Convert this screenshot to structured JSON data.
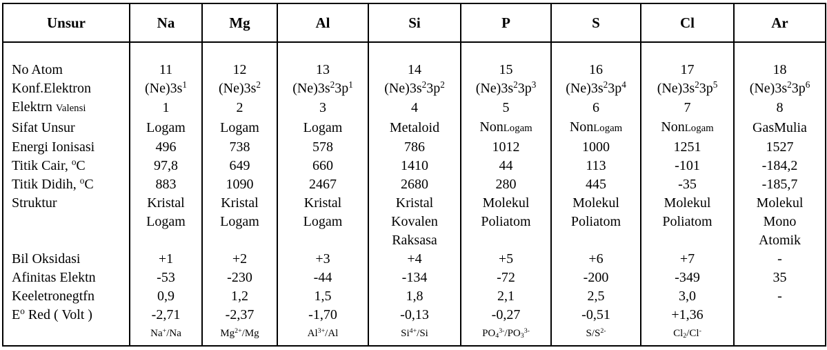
{
  "table": {
    "header": {
      "label_col": "Unsur",
      "elements": [
        "Na",
        "Mg",
        "Al",
        "Si",
        "P",
        "S",
        "Cl",
        "Ar"
      ]
    },
    "rows": [
      {
        "kind": "spacer",
        "label": "",
        "values": [
          "",
          "",
          "",
          "",
          "",
          "",
          "",
          ""
        ]
      },
      {
        "label": "No Atom",
        "values": [
          "11",
          "12",
          "13",
          "14",
          "15",
          "16",
          "17",
          "18"
        ]
      },
      {
        "label": "Konf.Elektron",
        "values": [
          "(Ne)3s^1^",
          "(Ne)3s^2^",
          "(Ne)3s^2^3p^1^",
          "(Ne)3s^2^3p^2^",
          "(Ne)3s^2^3p^3^",
          "(Ne)3s^2^3p^4^",
          "(Ne)3s^2^3p^5^",
          "(Ne)3s^2^3p^6^"
        ]
      },
      {
        "label": "Elektrn %Valensi%",
        "values": [
          "1",
          "2",
          "3",
          "4",
          "5",
          "6",
          "7",
          "8"
        ]
      },
      {
        "label": "Sifat Unsur",
        "values": [
          "Logam",
          "Logam",
          "Logam",
          "Metaloid",
          "Non%Logam%",
          "Non%Logam%",
          "Non%Logam%",
          "GasMulia"
        ]
      },
      {
        "label": "Energi Ionisasi",
        "values": [
          "496",
          "738",
          "578",
          "786",
          "1012",
          "1000",
          "1251",
          "1527"
        ]
      },
      {
        "label": "Titik Cair, ^o^C",
        "values": [
          "97,8",
          "649",
          "660",
          "1410",
          "44",
          "113",
          "-101",
          "-184,2"
        ]
      },
      {
        "label": "Titik Didih, ^o^C",
        "values": [
          "883",
          "1090",
          "2467",
          "2680",
          "280",
          "445",
          "-35",
          "-185,7"
        ]
      },
      {
        "label": "Struktur",
        "values": [
          "Kristal",
          "Kristal",
          "Kristal",
          "Kristal",
          "Molekul",
          "Molekul",
          "Molekul",
          "Molekul"
        ]
      },
      {
        "label": "",
        "values": [
          "Logam",
          "Logam",
          "Logam",
          "Kovalen",
          "Poliatom",
          "Poliatom",
          "Poliatom",
          "Mono"
        ]
      },
      {
        "label": "",
        "values": [
          "",
          "",
          "",
          "Raksasa",
          "",
          "",
          "",
          "Atomik"
        ]
      },
      {
        "label": "Bil Oksidasi",
        "values": [
          "+1",
          "+2",
          "+3",
          "+4",
          "+5",
          "+6",
          "+7",
          "-"
        ]
      },
      {
        "label": "Afinitas Elektn",
        "values": [
          "-53",
          "-230",
          "-44",
          "-134",
          "-72",
          "-200",
          "-349",
          "35"
        ]
      },
      {
        "label": "Keeletronegtfn",
        "values": [
          "0,9",
          "1,2",
          "1,5",
          "1,8",
          "2,1",
          "2,5",
          "3,0",
          "-"
        ]
      },
      {
        "label": "E^o^ Red ( Volt )",
        "values": [
          "-2,71",
          "-2,37",
          "-1,70",
          "-0,13",
          "-0,27",
          "-0,51",
          "+1,36",
          ""
        ]
      },
      {
        "kind": "redox",
        "label": "",
        "values": [
          "Na^+^/Na",
          "Mg^2+^/Mg",
          "Al^3+^/Al",
          "Si^4+^/Si",
          "PO~4~^3-^/PO~3~^3-^",
          "S/S^2-^",
          "Cl~2~/Cl^-^",
          ""
        ]
      }
    ]
  },
  "colors": {
    "text": "#000000",
    "border": "#000000",
    "background": "#ffffff"
  }
}
